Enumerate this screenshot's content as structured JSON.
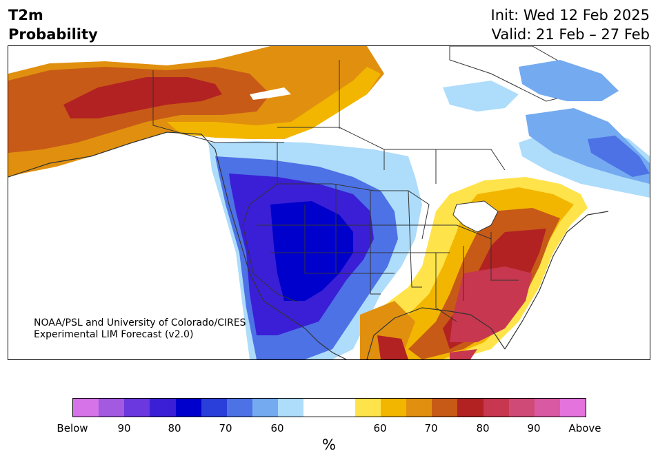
{
  "title": {
    "line1": "T2m",
    "line2": "Probability"
  },
  "dates": {
    "init": "Init: Wed 12 Feb 2025",
    "valid": "Valid: 21 Feb – 27 Feb"
  },
  "credit": {
    "line1": "NOAA/PSL and University of Colorado/CIRES",
    "line2": "Experimental LIM Forecast (v2.0)"
  },
  "colorbar": {
    "colors": [
      "#d673e8",
      "#a35ae0",
      "#6b37de",
      "#3a1fd6",
      "#0000cc",
      "#2a3fd9",
      "#4d72e6",
      "#74aaf0",
      "#aedcfb",
      "#ffffff",
      "#ffffff",
      "#ffe34a",
      "#f2b600",
      "#e0900e",
      "#c85a17",
      "#b22222",
      "#c7374f",
      "#d04a78",
      "#d95aa3",
      "#e473dd"
    ],
    "labels": [
      "Below",
      "90",
      "80",
      "70",
      "60",
      "60",
      "70",
      "80",
      "90",
      "Above"
    ]
  },
  "unit": "%"
}
